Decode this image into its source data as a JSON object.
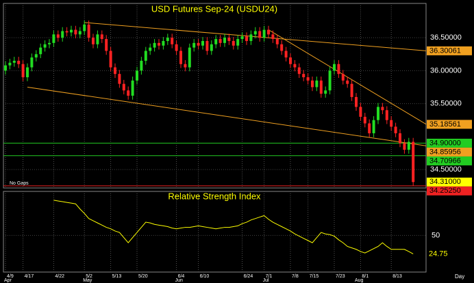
{
  "chart_data": [
    {
      "type": "candlestick",
      "title": "USD Futures Sep-24 (USDU24)",
      "annotation": "No Gaps",
      "xlabel": "Day",
      "categories": [
        "4/9",
        null,
        null,
        null,
        "4/17",
        null,
        null,
        null,
        null,
        null,
        null,
        "4/22",
        null,
        null,
        null,
        null,
        null,
        null,
        "5/2",
        null,
        null,
        null,
        null,
        null,
        "5/13",
        null,
        null,
        null,
        null,
        null,
        "5/20",
        null,
        null,
        null,
        null,
        null,
        null,
        null,
        null,
        "6/4",
        null,
        null,
        null,
        null,
        "6/10",
        null,
        null,
        null,
        null,
        null,
        null,
        null,
        null,
        null,
        "6/24",
        null,
        null,
        null,
        null,
        "7/1",
        null,
        null,
        null,
        null,
        null,
        "7/8",
        null,
        null,
        null,
        "7/15",
        null,
        null,
        null,
        null,
        null,
        "7/23",
        null,
        null,
        null,
        null,
        null,
        "8/1",
        null,
        null,
        null,
        null,
        null,
        null,
        "8/13",
        null,
        null,
        null,
        null,
        null
      ],
      "months": [
        "Apr",
        null,
        null,
        null,
        null,
        null,
        null,
        null,
        null,
        null,
        null,
        null,
        null,
        null,
        null,
        null,
        null,
        null,
        "May",
        null,
        null,
        null,
        null,
        null,
        null,
        null,
        null,
        null,
        null,
        null,
        null,
        null,
        null,
        null,
        null,
        null,
        null,
        null,
        null,
        "Jun",
        null,
        null,
        null,
        null,
        null,
        null,
        null,
        null,
        null,
        null,
        null,
        null,
        null,
        null,
        null,
        null,
        null,
        null,
        null,
        "Jul",
        null,
        null,
        null,
        null,
        null,
        null,
        null,
        null,
        null,
        null,
        null,
        null,
        null,
        null,
        null,
        null,
        null,
        null,
        null,
        null,
        "Aug",
        null,
        null,
        null,
        null,
        null,
        null,
        null,
        null,
        null,
        null,
        null,
        null
      ],
      "open": [
        36.0,
        36.08,
        36.12,
        36.15,
        36.1,
        35.9,
        36.05,
        36.2,
        36.25,
        36.35,
        36.4,
        36.42,
        36.55,
        36.5,
        36.6,
        36.58,
        36.62,
        36.55,
        36.6,
        36.7,
        36.5,
        36.4,
        36.55,
        36.48,
        36.3,
        36.05,
        35.95,
        35.8,
        35.7,
        35.62,
        35.85,
        36.0,
        36.15,
        36.3,
        36.35,
        36.42,
        36.38,
        36.45,
        36.5,
        36.4,
        36.3,
        36.1,
        36.05,
        36.35,
        36.42,
        36.38,
        36.45,
        36.3,
        36.4,
        36.48,
        36.42,
        36.5,
        36.45,
        36.38,
        36.48,
        36.52,
        36.45,
        36.55,
        36.6,
        36.5,
        36.62,
        36.55,
        36.48,
        36.4,
        36.3,
        36.2,
        36.1,
        36.05,
        35.95,
        35.9,
        35.85,
        35.75,
        35.85,
        35.65,
        35.7,
        36.0,
        36.1,
        35.95,
        35.85,
        35.8,
        35.6,
        35.45,
        35.3,
        35.2,
        35.05,
        35.25,
        35.45,
        35.4,
        35.25,
        35.15,
        35.05,
        34.9,
        34.8,
        34.92
      ],
      "high": [
        36.14,
        36.18,
        36.21,
        36.21,
        36.16,
        36.11,
        36.26,
        36.31,
        36.41,
        36.46,
        36.48,
        36.61,
        36.61,
        36.66,
        36.66,
        36.68,
        36.68,
        36.66,
        36.76,
        36.76,
        36.56,
        36.61,
        36.61,
        36.54,
        36.36,
        36.11,
        36.01,
        35.86,
        35.76,
        35.91,
        36.06,
        36.21,
        36.36,
        36.41,
        36.48,
        36.48,
        36.51,
        36.56,
        36.56,
        36.46,
        36.36,
        36.16,
        36.41,
        36.48,
        36.48,
        36.51,
        36.51,
        36.46,
        36.54,
        36.54,
        36.56,
        36.56,
        36.51,
        36.54,
        36.58,
        36.58,
        36.61,
        36.66,
        36.66,
        36.68,
        36.68,
        36.61,
        36.54,
        36.46,
        36.36,
        36.26,
        36.16,
        36.11,
        36.01,
        35.96,
        35.91,
        35.91,
        35.91,
        35.76,
        36.06,
        36.16,
        36.16,
        36.01,
        35.91,
        35.86,
        35.66,
        35.51,
        35.36,
        35.26,
        35.31,
        35.51,
        35.51,
        35.46,
        35.31,
        35.21,
        35.11,
        34.96,
        34.98,
        34.98
      ],
      "low": [
        35.94,
        36.02,
        36.06,
        36.04,
        35.84,
        35.84,
        35.99,
        36.14,
        36.19,
        36.29,
        36.34,
        36.36,
        36.44,
        36.44,
        36.52,
        36.52,
        36.49,
        36.49,
        36.54,
        36.44,
        36.34,
        36.34,
        36.42,
        36.24,
        35.99,
        35.89,
        35.74,
        35.64,
        35.56,
        35.56,
        35.79,
        35.94,
        36.09,
        36.24,
        36.29,
        36.32,
        36.32,
        36.39,
        36.34,
        36.24,
        36.04,
        35.99,
        35.99,
        36.29,
        36.32,
        36.32,
        36.24,
        36.24,
        36.34,
        36.36,
        36.36,
        36.39,
        36.32,
        36.32,
        36.42,
        36.39,
        36.39,
        36.49,
        36.44,
        36.44,
        36.49,
        36.42,
        36.34,
        36.24,
        36.14,
        36.04,
        35.99,
        35.89,
        35.84,
        35.79,
        35.69,
        35.69,
        35.59,
        35.59,
        35.64,
        35.94,
        35.89,
        35.79,
        35.74,
        35.54,
        35.39,
        35.24,
        35.14,
        34.99,
        34.99,
        35.19,
        35.34,
        35.19,
        35.09,
        34.99,
        34.84,
        34.74,
        34.74,
        34.25
      ],
      "close": [
        36.08,
        36.12,
        36.15,
        36.1,
        35.9,
        36.05,
        36.2,
        36.25,
        36.35,
        36.4,
        36.42,
        36.55,
        36.5,
        36.6,
        36.58,
        36.62,
        36.55,
        36.6,
        36.7,
        36.5,
        36.4,
        36.55,
        36.48,
        36.3,
        36.05,
        35.95,
        35.8,
        35.7,
        35.62,
        35.85,
        36.0,
        36.15,
        36.3,
        36.35,
        36.42,
        36.38,
        36.45,
        36.5,
        36.4,
        36.3,
        36.1,
        36.05,
        36.35,
        36.42,
        36.38,
        36.45,
        36.3,
        36.4,
        36.48,
        36.42,
        36.5,
        36.45,
        36.38,
        36.48,
        36.52,
        36.45,
        36.55,
        36.6,
        36.5,
        36.62,
        36.55,
        36.48,
        36.4,
        36.3,
        36.2,
        36.1,
        36.05,
        35.95,
        35.9,
        35.85,
        35.75,
        35.85,
        35.65,
        35.7,
        36.0,
        36.1,
        35.95,
        35.85,
        35.8,
        35.6,
        35.45,
        35.3,
        35.2,
        35.05,
        35.25,
        35.45,
        35.4,
        35.25,
        35.15,
        35.05,
        34.9,
        34.8,
        34.92,
        34.31
      ],
      "up_color": "#22dd22",
      "down_color": "#ff2222",
      "ylim": [
        34.22,
        37.02
      ],
      "yticks": [
        {
          "value": 36.5,
          "label": "36.50000"
        },
        {
          "value": 36.0,
          "label": "36.00000"
        },
        {
          "value": 35.5,
          "label": "35.50000"
        },
        {
          "value": 34.5,
          "label": "34.50000"
        }
      ],
      "trendlines": [
        {
          "x": [
            18,
            96
          ],
          "values": [
            36.73,
            36.30061
          ],
          "label": "36.30061",
          "color": "#f0a020"
        },
        {
          "x": [
            60,
            96
          ],
          "values": [
            36.62,
            35.18561
          ],
          "label": "35.18561",
          "color": "#f0a020"
        },
        {
          "x": [
            5,
            96
          ],
          "values": [
            35.75,
            34.85956
          ],
          "label": "34.85956",
          "color": "#f0a020"
        }
      ],
      "hlines": [
        {
          "value": 34.9,
          "label": "34.90000",
          "color": "#22cc22"
        },
        {
          "value": 34.70966,
          "label": "34.70966",
          "color": "#22cc22"
        },
        {
          "value": 34.2525,
          "label": "34.25250",
          "color": "#ee2222"
        }
      ],
      "last_price": {
        "value": 34.31,
        "label": "34.31000",
        "color": "#ffff00"
      }
    },
    {
      "type": "line",
      "title": "Relative Strength Index",
      "color": "#ffff00",
      "values": [
        null,
        null,
        null,
        null,
        null,
        null,
        null,
        null,
        null,
        null,
        null,
        98,
        97,
        96,
        95,
        94,
        93,
        86,
        80,
        73,
        70,
        67,
        64,
        61,
        59,
        56,
        54,
        47,
        40,
        47,
        54,
        61,
        68,
        67,
        65,
        64,
        63,
        62,
        60,
        59,
        60,
        61,
        61,
        62,
        63,
        62,
        61,
        60,
        59,
        60,
        61,
        61,
        62,
        63,
        66,
        68,
        71,
        73,
        75,
        77,
        72,
        68,
        65,
        62,
        59,
        56,
        52,
        49,
        46,
        43,
        40,
        47,
        54,
        52,
        51,
        49,
        44,
        40,
        35,
        33,
        31,
        28,
        26,
        29,
        32,
        35,
        40,
        35,
        31,
        31,
        31,
        31,
        28,
        24.75
      ],
      "ylim": [
        0,
        110
      ],
      "yticks": [
        50
      ]
    }
  ]
}
